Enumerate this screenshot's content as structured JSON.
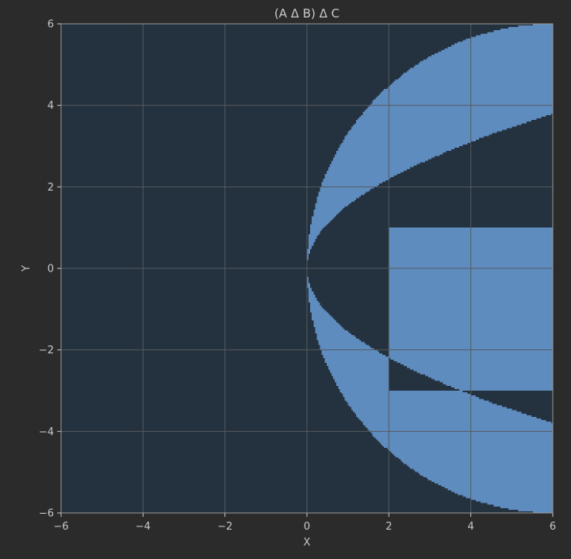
{
  "chart_data": {
    "type": "heatmap",
    "title": "(A Δ B) Δ C",
    "xlabel": "X",
    "ylabel": "Y",
    "xlim": [
      -6,
      6
    ],
    "ylim": [
      -6,
      6
    ],
    "grid": true,
    "x_ticks": [
      {
        "value": -6,
        "label": "−6"
      },
      {
        "value": -4,
        "label": "−4"
      },
      {
        "value": -2,
        "label": "−2"
      },
      {
        "value": 0,
        "label": "0"
      },
      {
        "value": 2,
        "label": "2"
      },
      {
        "value": 4,
        "label": "4"
      },
      {
        "value": 6,
        "label": "6"
      }
    ],
    "y_ticks": [
      {
        "value": 6,
        "label": "6"
      },
      {
        "value": 4,
        "label": "4"
      },
      {
        "value": 2,
        "label": "2"
      },
      {
        "value": 0,
        "label": "0"
      },
      {
        "value": -2,
        "label": "−2"
      },
      {
        "value": -4,
        "label": "−4"
      },
      {
        "value": -6,
        "label": "−6"
      }
    ],
    "sets": {
      "A": {
        "shape": "disk",
        "center": [
          6,
          0
        ],
        "radius": 6
      },
      "B": {
        "shape": "parabola_region",
        "condition": "x > y^2 / 2.4"
      },
      "C": {
        "shape": "rectangles",
        "rects": [
          {
            "x": [
              2,
              6
            ],
            "y": [
              0,
              1
            ]
          },
          {
            "x": [
              2,
              6
            ],
            "y": [
              -3,
              0
            ]
          }
        ]
      }
    },
    "grid_resolution": 300,
    "colors": {
      "figure_bg": "#2b2b2b",
      "region_out": "#24313f",
      "region_in": "#5f8cbf",
      "grid": "#555a5e",
      "text": "#c8c8c8",
      "axes_edge": "#9a9a9a"
    }
  }
}
